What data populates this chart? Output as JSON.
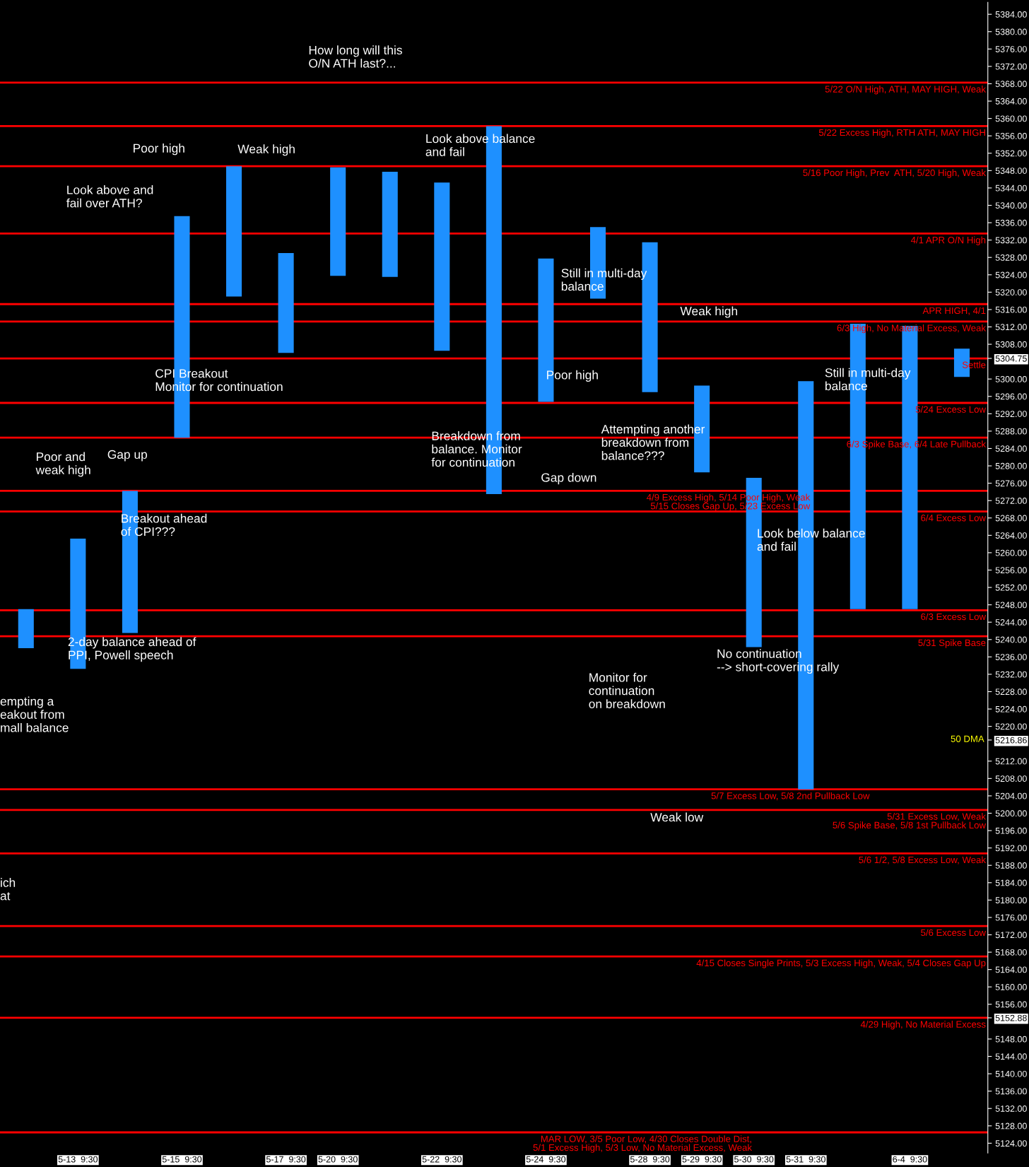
{
  "chart_data": {
    "type": "bar",
    "categories": [
      null,
      "5-13  9:30",
      null,
      "5-15  9:30",
      null,
      "5-17  9:30",
      "5-20  9:30",
      null,
      "5-22  9:30",
      null,
      "5-24  9:30",
      null,
      "5-28  9:30",
      "5-29  9:30",
      "5-30  9:30",
      "5-31  9:30",
      null,
      "6-4  9:30",
      null
    ],
    "base": [
      5238,
      5233.25,
      5241.5,
      5286.5,
      5319,
      5306,
      5323.75,
      5323.5,
      5306.5,
      5273.5,
      5294.75,
      5318.5,
      5297,
      5278.5,
      5238.25,
      5205.5,
      5247,
      5247,
      5300.5
    ],
    "values": [
      9,
      30,
      32.75,
      51,
      30,
      23,
      25,
      24.25,
      38.75,
      84.75,
      33,
      16.5,
      34.5,
      20,
      39,
      94,
      65.75,
      65.25,
      6.5
    ],
    "color": "#1e90ff",
    "ylim": [
      5121.75,
      5386.75
    ],
    "yticks": [
      {
        "value": 5124,
        "label": "5124.00"
      },
      {
        "value": 5128,
        "label": "5128.00"
      },
      {
        "value": 5132,
        "label": "5132.00"
      },
      {
        "value": 5136,
        "label": "5136.00"
      },
      {
        "value": 5140,
        "label": "5140.00"
      },
      {
        "value": 5144,
        "label": "5144.00"
      },
      {
        "value": 5148,
        "label": "5148.00"
      },
      {
        "value": 5152.88,
        "label": "5152.88"
      },
      {
        "value": 5156,
        "label": "5156.00"
      },
      {
        "value": 5160,
        "label": "5160.00"
      },
      {
        "value": 5164,
        "label": "5164.00"
      },
      {
        "value": 5168,
        "label": "5168.00"
      },
      {
        "value": 5172,
        "label": "5172.00"
      },
      {
        "value": 5176,
        "label": "5176.00"
      },
      {
        "value": 5180,
        "label": "5180.00"
      },
      {
        "value": 5184,
        "label": "5184.00"
      },
      {
        "value": 5188,
        "label": "5188.00"
      },
      {
        "value": 5192,
        "label": "5192.00"
      },
      {
        "value": 5196,
        "label": "5196.00"
      },
      {
        "value": 5200,
        "label": "5200.00"
      },
      {
        "value": 5204,
        "label": "5204.00"
      },
      {
        "value": 5208,
        "label": "5208.00"
      },
      {
        "value": 5212,
        "label": "5212.00"
      },
      {
        "value": 5216.86,
        "label": "5216.86"
      },
      {
        "value": 5220,
        "label": "5220.00"
      },
      {
        "value": 5224,
        "label": "5224.00"
      },
      {
        "value": 5228,
        "label": "5228.00"
      },
      {
        "value": 5232,
        "label": "5232.00"
      },
      {
        "value": 5236,
        "label": "5236.00"
      },
      {
        "value": 5240,
        "label": "5240.00"
      },
      {
        "value": 5244,
        "label": "5244.00"
      },
      {
        "value": 5248,
        "label": "5248.00"
      },
      {
        "value": 5252,
        "label": "5252.00"
      },
      {
        "value": 5256,
        "label": "5256.00"
      },
      {
        "value": 5260,
        "label": "5260.00"
      },
      {
        "value": 5264,
        "label": "5264.00"
      },
      {
        "value": 5268,
        "label": "5268.00"
      },
      {
        "value": 5272,
        "label": "5272.00"
      },
      {
        "value": 5276,
        "label": "5276.00"
      },
      {
        "value": 5280,
        "label": "5280.00"
      },
      {
        "value": 5284,
        "label": "5284.00"
      },
      {
        "value": 5288,
        "label": "5288.00"
      },
      {
        "value": 5292,
        "label": "5292.00"
      },
      {
        "value": 5296,
        "label": "5296.00"
      },
      {
        "value": 5300,
        "label": "5300.00"
      },
      {
        "value": 5304.75,
        "label": "5304.75"
      },
      {
        "value": 5308,
        "label": "5308.00"
      },
      {
        "value": 5312,
        "label": "5312.00"
      },
      {
        "value": 5316,
        "label": "5316.00"
      },
      {
        "value": 5320,
        "label": "5320.00"
      },
      {
        "value": 5324,
        "label": "5324.00"
      },
      {
        "value": 5328,
        "label": "5328.00"
      },
      {
        "value": 5332,
        "label": "5332.00"
      },
      {
        "value": 5336,
        "label": "5336.00"
      },
      {
        "value": 5340,
        "label": "5340.00"
      },
      {
        "value": 5344,
        "label": "5344.00"
      },
      {
        "value": 5348,
        "label": "5348.00"
      },
      {
        "value": 5352,
        "label": "5352.00"
      },
      {
        "value": 5356,
        "label": "5356.00"
      },
      {
        "value": 5360,
        "label": "5360.00"
      },
      {
        "value": 5364,
        "label": "5364.00"
      },
      {
        "value": 5368,
        "label": "5368.00"
      },
      {
        "value": 5372,
        "label": "5372.00"
      },
      {
        "value": 5376,
        "label": "5376.00"
      },
      {
        "value": 5380,
        "label": "5380.00"
      },
      {
        "value": 5384,
        "label": "5384.00"
      }
    ],
    "ref_lines": [
      {
        "axis": "y",
        "value": 5368.25,
        "label": "5/22 O/N High, ATH, MAY HIGH, Weak",
        "color": "#ff0000"
      },
      {
        "axis": "y",
        "value": 5358.25,
        "label": "5/22 Excess High, RTH ATH, MAY HIGH",
        "color": "#ff0000"
      },
      {
        "axis": "y",
        "value": 5349,
        "label": "5/16 Poor High, Prev  ATH, 5/20 High, Weak",
        "color": "#ff0000"
      },
      {
        "axis": "y",
        "value": 5333.5,
        "label": "4/1 APR O/N High",
        "color": "#ff0000"
      },
      {
        "axis": "y",
        "value": 5317.25,
        "label": "APR HIGH, 4/1",
        "color": "#ff0000"
      },
      {
        "axis": "y",
        "value": 5313.25,
        "label": "6/3 High, No Material Excess, Weak",
        "color": "#ff0000"
      },
      {
        "axis": "y",
        "value": 5304.75,
        "label": "Settle",
        "color": "#ff0000"
      },
      {
        "axis": "y",
        "value": 5294.5,
        "label": "5/24 Excess Low",
        "color": "#ff0000"
      },
      {
        "axis": "y",
        "value": 5286.5,
        "label": "6/3 Spike Base, 6/4 Late Pullback",
        "color": "#ff0000"
      },
      {
        "axis": "y",
        "value": 5274.25,
        "label": "4/9 Excess High, 5/14 Poor High, Weak\n5/15 Closes Gap Up, 5/23 Excess Low",
        "color": "#ff0000"
      },
      {
        "axis": "y",
        "value": 5269.5,
        "label": "6/4 Excess Low",
        "color": "#ff0000"
      },
      {
        "axis": "y",
        "value": 5246.75,
        "label": "6/3 Excess Low",
        "color": "#ff0000"
      },
      {
        "axis": "y",
        "value": 5240.75,
        "label": "5/31 Spike Base",
        "color": "#ff0000"
      },
      {
        "axis": "y",
        "value": 5205.5,
        "label": "5/7 Excess Low, 5/8 2nd Pullback Low",
        "color": "#ff0000"
      },
      {
        "axis": "y",
        "value": 5200.75,
        "label": "5/31 Excess Low, Weak\n5/6 Spike Base, 5/8 1st Pullback Low",
        "color": "#ff0000"
      },
      {
        "axis": "y",
        "value": 5190.75,
        "label": "5/6 1/2, 5/8 Excess Low, Weak",
        "color": "#ff0000"
      },
      {
        "axis": "y",
        "value": 5174,
        "label": "5/6 Excess Low",
        "color": "#ff0000"
      },
      {
        "axis": "y",
        "value": 5167,
        "label": "4/15 Closes Single Prints, 5/3 Excess High, Weak, 5/4 Closes Gap Up",
        "color": "#ff0000"
      },
      {
        "axis": "y",
        "value": 5152.88,
        "label": "4/29 High, No Material Excess",
        "color": "#ff0000"
      },
      {
        "axis": "y",
        "value": 5126.5,
        "label": "MAR LOW, 3/5 Poor Low, 4/30 Closes Double Dist,\n5/1 Excess High, 5/3 Low, No Material Excess, Weak",
        "color": "#ff0000"
      }
    ],
    "annotations": [
      "How long will this\nO/N ATH last?...",
      "Poor high",
      "Weak high",
      "Look above and\nfail over ATH?",
      "Look above balance\nand fail",
      "Still in multi-day\nbalance",
      "Weak high",
      "CPI Breakout\nMonitor for continuation",
      "Poor high",
      "Still in multi-day\nbalance",
      "Breakdown from\nbalance. Monitor\nfor continuation",
      "Attempting another\nbreakdown from\nbalance???",
      "Poor and\nweak high",
      "Gap up",
      "Gap down",
      "Breakout ahead\nof CPI???",
      "Look below balance\nand fail",
      "2-day balance ahead of\nPPI, Powell speech",
      "No continuation\n--> short-covering rally",
      "Monitor for\ncontinuation\non breakdown",
      "empting a\neakout from\nmall balance",
      "Weak low",
      "ich\nat",
      "50 DMA"
    ],
    "grid": false,
    "legend": false
  }
}
